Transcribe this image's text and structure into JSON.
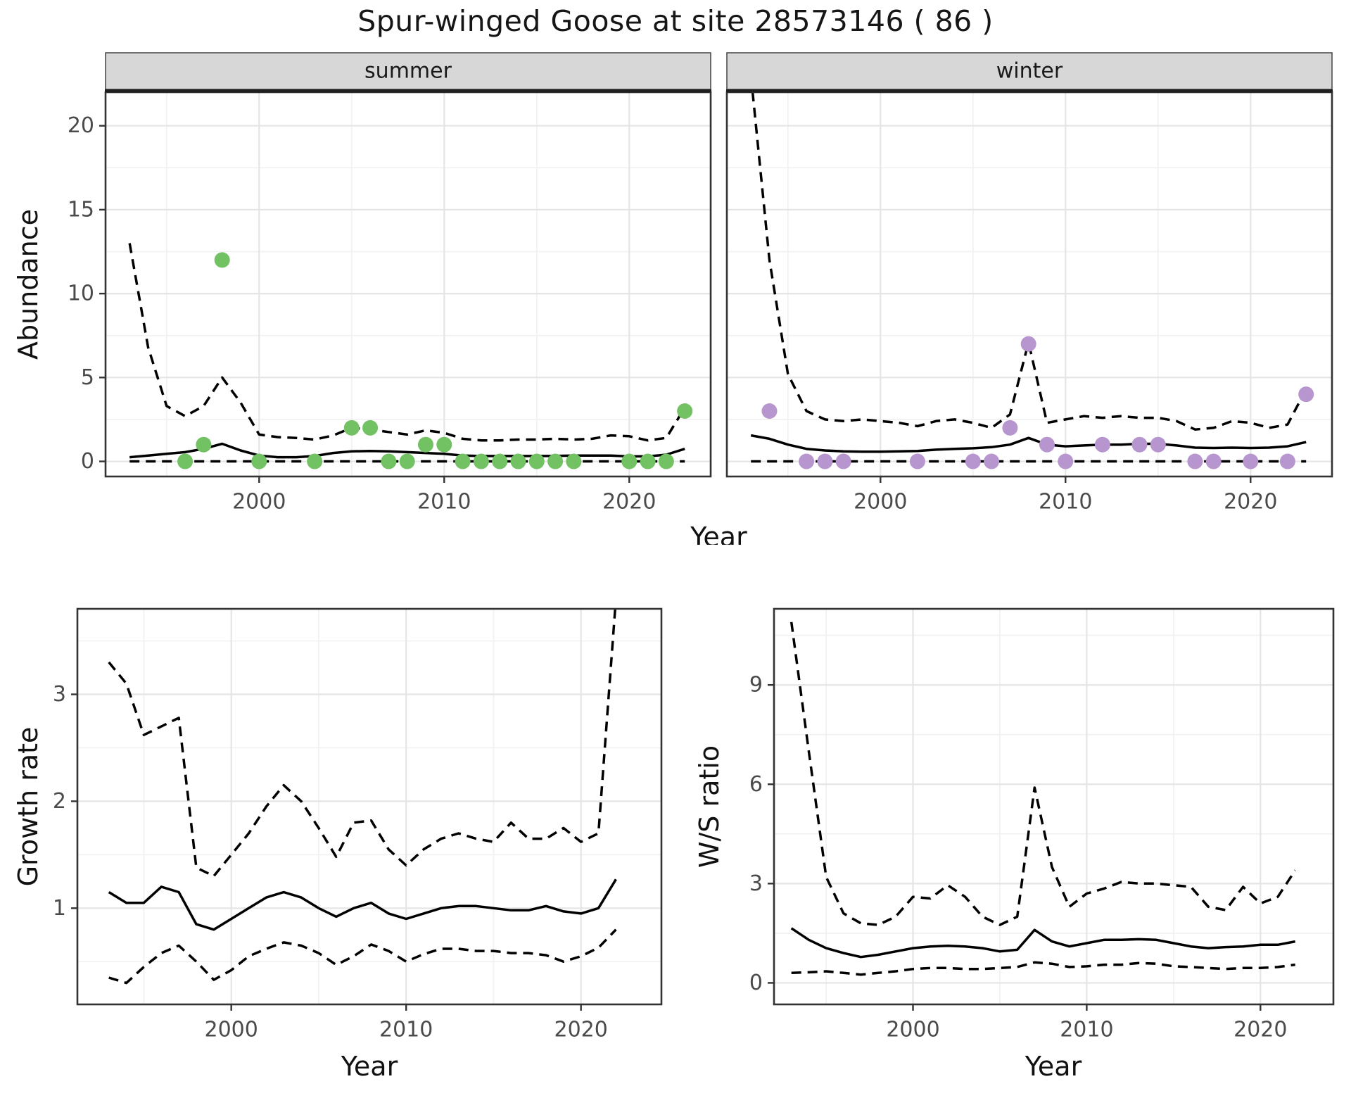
{
  "title": "Spur-winged Goose at site 28573146 ( 86 )",
  "colors": {
    "summer_point": "#72c162",
    "winter_point": "#b795ce",
    "line": "#000000",
    "panel_border": "#333333",
    "strip_bg": "#d7d7d7",
    "grid_major": "#e5e5e5",
    "grid_minor": "#f1f1f1",
    "tick_label": "#4a4a4a",
    "axis_title": "#111111",
    "background": "#ffffff"
  },
  "chart_data": [
    {
      "type": "line+scatter",
      "name": "abundance",
      "xlabel": "Year",
      "ylabel": "Abundance",
      "x_ticks": [
        2000,
        2010,
        2020
      ],
      "x_minor": [
        1995,
        2005,
        2015
      ],
      "y_ticks": [
        0,
        5,
        10,
        15,
        20
      ],
      "y_minor": [
        2.5,
        7.5,
        12.5,
        17.5
      ],
      "xlim": [
        1991.7,
        2024.4
      ],
      "ylim": [
        -0.9,
        22.0
      ],
      "grid": true,
      "legend": "none",
      "years": [
        1993,
        1994,
        1995,
        1996,
        1997,
        1998,
        1999,
        2000,
        2001,
        2002,
        2003,
        2004,
        2005,
        2006,
        2007,
        2008,
        2009,
        2010,
        2011,
        2012,
        2013,
        2014,
        2015,
        2016,
        2017,
        2018,
        2019,
        2020,
        2021,
        2022,
        2023
      ],
      "facets": [
        {
          "label": "summer",
          "point_color": "#72c162",
          "points": {
            "x": [
              1996,
              1997,
              1998,
              2000,
              2003,
              2005,
              2006,
              2007,
              2008,
              2009,
              2010,
              2011,
              2012,
              2013,
              2014,
              2015,
              2016,
              2017,
              2020,
              2021,
              2022,
              2023
            ],
            "y": [
              0,
              1,
              12,
              0,
              0,
              2,
              2,
              0,
              0,
              1,
              1,
              0,
              0,
              0,
              0,
              0,
              0,
              0,
              0,
              0,
              0,
              3
            ]
          },
          "series": [
            {
              "name": "fit",
              "style": "solid",
              "y": [
                0.25,
                0.35,
                0.45,
                0.55,
                0.75,
                1.05,
                0.65,
                0.35,
                0.25,
                0.25,
                0.32,
                0.5,
                0.6,
                0.62,
                0.6,
                0.55,
                0.5,
                0.45,
                0.35,
                0.32,
                0.32,
                0.32,
                0.32,
                0.33,
                0.35,
                0.35,
                0.35,
                0.3,
                0.3,
                0.4,
                0.75
              ]
            },
            {
              "name": "ci_upper",
              "style": "dashed",
              "y": [
                13,
                6.8,
                3.3,
                2.7,
                3.3,
                5,
                3.5,
                1.6,
                1.45,
                1.4,
                1.3,
                1.55,
                2,
                1.9,
                1.75,
                1.6,
                1.85,
                1.7,
                1.35,
                1.25,
                1.25,
                1.3,
                1.3,
                1.35,
                1.3,
                1.35,
                1.55,
                1.5,
                1.25,
                1.4,
                3.2
              ]
            },
            {
              "name": "ci_lower",
              "style": "dashed",
              "y": [
                0,
                0,
                0,
                0,
                0,
                0,
                0,
                0,
                0,
                0,
                0,
                0,
                0,
                0,
                0,
                0,
                0,
                0,
                0,
                0,
                0,
                0,
                0,
                0,
                0,
                0,
                0,
                0,
                0,
                0,
                0
              ]
            }
          ]
        },
        {
          "label": "winter",
          "point_color": "#b795ce",
          "points": {
            "x": [
              1994,
              1996,
              1997,
              1998,
              2002,
              2005,
              2006,
              2007,
              2008,
              2009,
              2010,
              2012,
              2014,
              2015,
              2017,
              2018,
              2020,
              2022,
              2023
            ],
            "y": [
              3,
              0,
              0,
              0,
              0,
              0,
              0,
              2,
              7,
              1,
              0,
              1,
              1,
              1,
              0,
              0,
              0,
              0,
              4
            ]
          },
          "series": [
            {
              "name": "fit",
              "style": "solid",
              "y": [
                1.55,
                1.35,
                1,
                0.75,
                0.65,
                0.6,
                0.58,
                0.58,
                0.6,
                0.62,
                0.7,
                0.75,
                0.78,
                0.85,
                1,
                1.4,
                1,
                0.9,
                0.95,
                1,
                1,
                1.05,
                1.05,
                0.95,
                0.82,
                0.8,
                0.82,
                0.8,
                0.82,
                0.9,
                1.15
              ]
            },
            {
              "name": "ci_upper",
              "style": "dashed",
              "y": [
                23,
                12,
                5.2,
                3,
                2.5,
                2.4,
                2.5,
                2.4,
                2.3,
                2.1,
                2.4,
                2.5,
                2.3,
                2,
                2.8,
                7.1,
                2.3,
                2.5,
                2.7,
                2.6,
                2.7,
                2.6,
                2.6,
                2.4,
                1.9,
                2,
                2.4,
                2.3,
                2,
                2.2,
                4.3
              ]
            },
            {
              "name": "ci_lower",
              "style": "dashed",
              "y": [
                0,
                0,
                0,
                0,
                0,
                0,
                0,
                0,
                0,
                0,
                0,
                0,
                0,
                0,
                0,
                0,
                0,
                0,
                0,
                0,
                0,
                0,
                0,
                0,
                0,
                0,
                0,
                0,
                0,
                0,
                0
              ]
            }
          ]
        }
      ]
    },
    {
      "type": "line",
      "name": "growth_rate",
      "xlabel": "Year",
      "ylabel": "Growth rate",
      "x_ticks": [
        2000,
        2010,
        2020
      ],
      "x_minor": [
        1995,
        2005,
        2015
      ],
      "y_ticks": [
        1,
        2,
        3
      ],
      "y_minor": [
        0.5,
        1.5,
        2.5,
        3.5
      ],
      "xlim": [
        1991.2,
        2024.6
      ],
      "ylim": [
        0.1,
        3.8
      ],
      "grid": true,
      "legend": "none",
      "years": [
        1993,
        1994,
        1995,
        1996,
        1997,
        1998,
        1999,
        2000,
        2001,
        2002,
        2003,
        2004,
        2005,
        2006,
        2007,
        2008,
        2009,
        2010,
        2011,
        2012,
        2013,
        2014,
        2015,
        2016,
        2017,
        2018,
        2019,
        2020,
        2021,
        2022
      ],
      "series": [
        {
          "name": "fit",
          "style": "solid",
          "y": [
            1.15,
            1.05,
            1.05,
            1.2,
            1.15,
            0.85,
            0.8,
            0.9,
            1,
            1.1,
            1.15,
            1.1,
            1,
            0.92,
            1,
            1.05,
            0.95,
            0.9,
            0.95,
            1,
            1.02,
            1.02,
            1,
            0.98,
            0.98,
            1.02,
            0.97,
            0.95,
            1,
            1.27
          ]
        },
        {
          "name": "ci_upper",
          "style": "dashed",
          "y": [
            3.3,
            3.1,
            2.62,
            2.7,
            2.78,
            1.38,
            1.3,
            1.5,
            1.7,
            1.95,
            2.15,
            2,
            1.75,
            1.48,
            1.8,
            1.82,
            1.55,
            1.4,
            1.55,
            1.65,
            1.7,
            1.65,
            1.62,
            1.8,
            1.65,
            1.65,
            1.75,
            1.62,
            1.7,
            3.9
          ]
        },
        {
          "name": "ci_lower",
          "style": "dashed",
          "y": [
            0.35,
            0.3,
            0.45,
            0.58,
            0.65,
            0.5,
            0.33,
            0.42,
            0.55,
            0.62,
            0.68,
            0.65,
            0.58,
            0.47,
            0.55,
            0.66,
            0.6,
            0.5,
            0.57,
            0.62,
            0.62,
            0.6,
            0.6,
            0.58,
            0.58,
            0.56,
            0.5,
            0.55,
            0.63,
            0.8
          ]
        }
      ]
    },
    {
      "type": "line",
      "name": "ws_ratio",
      "xlabel": "Year",
      "ylabel": "W/S ratio",
      "x_ticks": [
        2000,
        2010,
        2020
      ],
      "x_minor": [
        1995,
        2005,
        2015
      ],
      "y_ticks": [
        0,
        3,
        6,
        9
      ],
      "y_minor": [
        1.5,
        4.5,
        7.5,
        10.5
      ],
      "xlim": [
        1992.0,
        2024.2
      ],
      "ylim": [
        -0.65,
        11.3
      ],
      "grid": true,
      "legend": "none",
      "years": [
        1993,
        1994,
        1995,
        1996,
        1997,
        1998,
        1999,
        2000,
        2001,
        2002,
        2003,
        2004,
        2005,
        2006,
        2007,
        2008,
        2009,
        2010,
        2011,
        2012,
        2013,
        2014,
        2015,
        2016,
        2017,
        2018,
        2019,
        2020,
        2021,
        2022
      ],
      "series": [
        {
          "name": "fit",
          "style": "solid",
          "y": [
            1.65,
            1.3,
            1.05,
            0.9,
            0.78,
            0.85,
            0.95,
            1.05,
            1.1,
            1.12,
            1.1,
            1.05,
            0.95,
            1,
            1.6,
            1.25,
            1.1,
            1.2,
            1.3,
            1.3,
            1.32,
            1.3,
            1.2,
            1.1,
            1.05,
            1.08,
            1.1,
            1.15,
            1.15,
            1.25
          ]
        },
        {
          "name": "ci_upper",
          "style": "dashed",
          "y": [
            10.9,
            7,
            3.2,
            2.1,
            1.8,
            1.75,
            2,
            2.6,
            2.55,
            2.95,
            2.6,
            2,
            1.75,
            2,
            5.9,
            3.5,
            2.3,
            2.7,
            2.85,
            3.05,
            3,
            3,
            2.95,
            2.9,
            2.3,
            2.2,
            2.9,
            2.4,
            2.6,
            3.4
          ]
        },
        {
          "name": "ci_lower",
          "style": "dashed",
          "y": [
            0.3,
            0.32,
            0.35,
            0.3,
            0.25,
            0.3,
            0.35,
            0.42,
            0.45,
            0.45,
            0.42,
            0.42,
            0.45,
            0.48,
            0.62,
            0.58,
            0.48,
            0.5,
            0.55,
            0.55,
            0.6,
            0.58,
            0.5,
            0.48,
            0.45,
            0.42,
            0.45,
            0.45,
            0.48,
            0.55
          ]
        }
      ]
    }
  ]
}
